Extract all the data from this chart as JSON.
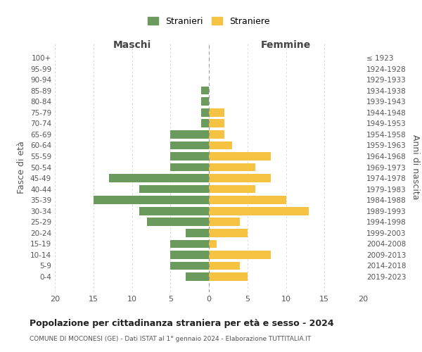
{
  "age_groups": [
    "0-4",
    "5-9",
    "10-14",
    "15-19",
    "20-24",
    "25-29",
    "30-34",
    "35-39",
    "40-44",
    "45-49",
    "50-54",
    "55-59",
    "60-64",
    "65-69",
    "70-74",
    "75-79",
    "80-84",
    "85-89",
    "90-94",
    "95-99",
    "100+"
  ],
  "birth_years": [
    "2019-2023",
    "2014-2018",
    "2009-2013",
    "2004-2008",
    "1999-2003",
    "1994-1998",
    "1989-1993",
    "1984-1988",
    "1979-1983",
    "1974-1978",
    "1969-1973",
    "1964-1968",
    "1959-1963",
    "1954-1958",
    "1949-1953",
    "1944-1948",
    "1939-1943",
    "1934-1938",
    "1929-1933",
    "1924-1928",
    "≤ 1923"
  ],
  "males": [
    3,
    5,
    5,
    5,
    3,
    8,
    9,
    15,
    9,
    13,
    5,
    5,
    5,
    5,
    1,
    1,
    1,
    1,
    0,
    0,
    0
  ],
  "females": [
    5,
    4,
    8,
    1,
    5,
    4,
    13,
    10,
    6,
    8,
    6,
    8,
    3,
    2,
    2,
    2,
    0,
    0,
    0,
    0,
    0
  ],
  "male_color": "#6a9a5c",
  "female_color": "#f5c242",
  "background_color": "#ffffff",
  "grid_color": "#cccccc",
  "title": "Popolazione per cittadinanza straniera per età e sesso - 2024",
  "subtitle": "COMUNE DI MOCONESI (GE) - Dati ISTAT al 1° gennaio 2024 - Elaborazione TUTTITALIA.IT",
  "left_label": "Maschi",
  "right_label": "Femmine",
  "ylabel": "Fasce di età",
  "right_ylabel": "Anni di nascita",
  "legend_male": "Stranieri",
  "legend_female": "Straniere",
  "xlim": 20,
  "figsize": [
    6.0,
    5.0
  ],
  "dpi": 100
}
